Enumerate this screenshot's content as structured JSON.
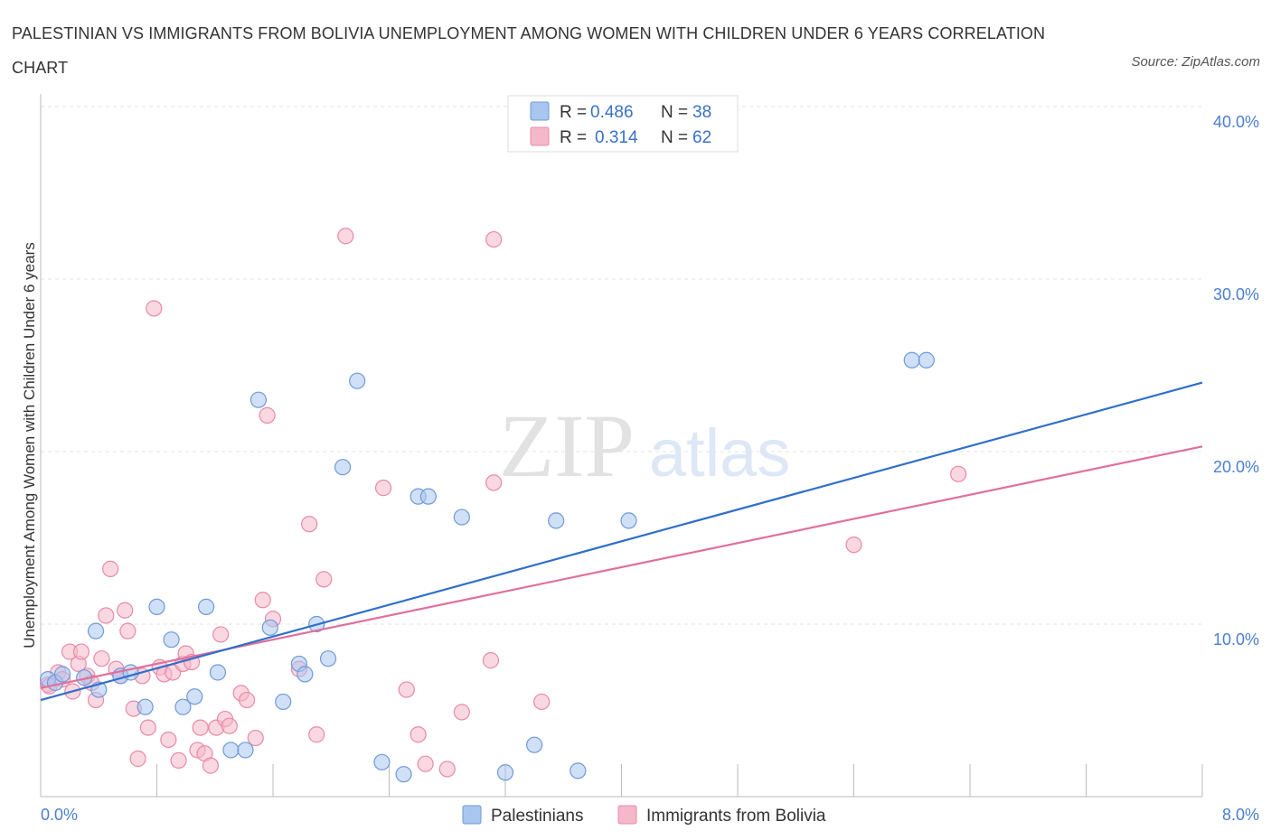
{
  "title": "PALESTINIAN VS IMMIGRANTS FROM BOLIVIA UNEMPLOYMENT AMONG WOMEN WITH CHILDREN UNDER 6 YEARS CORRELATION CHART",
  "source": "Source: ZipAtlas.com",
  "watermark": {
    "zip": "ZIP",
    "atlas": "atlas"
  },
  "legend_top": [
    {
      "r_label": "R = ",
      "r_value": "0.486",
      "n_label": "N = ",
      "n_value": "38",
      "color": "#a9c6f0"
    },
    {
      "r_label": "R = ",
      "r_value": "0.314",
      "n_label": "N = ",
      "n_value": "62",
      "color": "#f5b8cb"
    }
  ],
  "legend_bottom": [
    "Palestinians",
    "Immigrants from Bolivia"
  ],
  "colors": {
    "blue_fill": "#a9c6f0",
    "blue_stroke": "#6f9ad8",
    "blue_line": "#2f6fcb",
    "pink_fill": "#f5b8cb",
    "pink_stroke": "#e88aa8",
    "pink_line": "#e0709a",
    "tick": "#4a7fd0"
  },
  "chart_data": {
    "type": "scatter",
    "title": "PALESTINIAN VS IMMIGRANTS FROM BOLIVIA UNEMPLOYMENT AMONG WOMEN WITH CHILDREN UNDER 6 YEARS CORRELATION CHART",
    "xlabel": "",
    "ylabel": "Unemployment Among Women with Children Under 6 years",
    "xlim": [
      0,
      8
    ],
    "ylim": [
      0,
      40
    ],
    "x_tick_labels": [
      "0.0%",
      "8.0%"
    ],
    "y_ticks": [
      10,
      20,
      30,
      40
    ],
    "y_tick_labels": [
      "10.0%",
      "20.0%",
      "30.0%",
      "40.0%"
    ],
    "grid": true,
    "legend_placement": "top-center",
    "series": [
      {
        "name": "Palestinians",
        "r": 0.486,
        "n": 38,
        "trend": [
          [
            0,
            5.6
          ],
          [
            8,
            24.0
          ]
        ],
        "points": [
          [
            0.05,
            6.8
          ],
          [
            0.1,
            6.6
          ],
          [
            0.15,
            7.1
          ],
          [
            0.3,
            6.9
          ],
          [
            0.4,
            6.2
          ],
          [
            0.38,
            9.6
          ],
          [
            0.55,
            7.0
          ],
          [
            0.62,
            7.2
          ],
          [
            0.72,
            5.2
          ],
          [
            0.8,
            11.0
          ],
          [
            0.9,
            9.1
          ],
          [
            0.98,
            5.2
          ],
          [
            1.06,
            5.8
          ],
          [
            1.14,
            11.0
          ],
          [
            1.22,
            7.2
          ],
          [
            1.31,
            2.7
          ],
          [
            1.41,
            2.7
          ],
          [
            1.5,
            23.0
          ],
          [
            1.58,
            9.8
          ],
          [
            1.67,
            5.5
          ],
          [
            1.78,
            7.7
          ],
          [
            1.82,
            7.1
          ],
          [
            1.9,
            10.0
          ],
          [
            1.98,
            8.0
          ],
          [
            2.08,
            19.1
          ],
          [
            2.18,
            24.1
          ],
          [
            2.35,
            2.0
          ],
          [
            2.5,
            1.3
          ],
          [
            2.6,
            17.4
          ],
          [
            2.67,
            17.4
          ],
          [
            2.9,
            16.2
          ],
          [
            3.2,
            1.4
          ],
          [
            3.4,
            3.0
          ],
          [
            3.55,
            16.0
          ],
          [
            3.7,
            1.5
          ],
          [
            4.05,
            16.0
          ],
          [
            6.0,
            25.3
          ],
          [
            6.1,
            25.3
          ]
        ]
      },
      {
        "name": "Immigrants from Bolivia",
        "r": 0.314,
        "n": 62,
        "trend": [
          [
            0,
            6.3
          ],
          [
            8,
            20.3
          ]
        ],
        "points": [
          [
            0.05,
            6.5
          ],
          [
            0.12,
            7.2
          ],
          [
            0.15,
            6.8
          ],
          [
            0.2,
            8.4
          ],
          [
            0.22,
            6.1
          ],
          [
            0.26,
            7.7
          ],
          [
            0.28,
            8.4
          ],
          [
            0.32,
            7.0
          ],
          [
            0.35,
            6.6
          ],
          [
            0.38,
            5.6
          ],
          [
            0.42,
            8.0
          ],
          [
            0.45,
            10.5
          ],
          [
            0.48,
            13.2
          ],
          [
            0.52,
            7.4
          ],
          [
            0.55,
            7.0
          ],
          [
            0.58,
            10.8
          ],
          [
            0.6,
            9.6
          ],
          [
            0.64,
            5.1
          ],
          [
            0.67,
            2.2
          ],
          [
            0.7,
            7.0
          ],
          [
            0.74,
            4.0
          ],
          [
            0.78,
            28.3
          ],
          [
            0.82,
            7.5
          ],
          [
            0.85,
            7.1
          ],
          [
            0.88,
            3.3
          ],
          [
            0.91,
            7.2
          ],
          [
            0.95,
            2.1
          ],
          [
            0.98,
            7.7
          ],
          [
            1.0,
            8.3
          ],
          [
            1.04,
            7.8
          ],
          [
            1.08,
            2.7
          ],
          [
            1.1,
            4.0
          ],
          [
            1.13,
            2.5
          ],
          [
            1.17,
            1.8
          ],
          [
            1.21,
            4.0
          ],
          [
            1.24,
            9.4
          ],
          [
            1.27,
            4.5
          ],
          [
            1.3,
            4.1
          ],
          [
            1.38,
            6.0
          ],
          [
            1.42,
            5.6
          ],
          [
            1.48,
            3.4
          ],
          [
            1.53,
            11.4
          ],
          [
            1.56,
            22.1
          ],
          [
            1.6,
            10.3
          ],
          [
            1.78,
            7.4
          ],
          [
            1.85,
            15.8
          ],
          [
            1.9,
            3.6
          ],
          [
            1.95,
            12.6
          ],
          [
            2.1,
            32.5
          ],
          [
            2.36,
            17.9
          ],
          [
            2.52,
            6.2
          ],
          [
            2.6,
            3.6
          ],
          [
            2.65,
            1.9
          ],
          [
            2.8,
            1.6
          ],
          [
            2.9,
            4.9
          ],
          [
            3.1,
            7.9
          ],
          [
            3.12,
            18.2
          ],
          [
            3.12,
            32.3
          ],
          [
            3.45,
            5.5
          ],
          [
            5.6,
            14.6
          ],
          [
            6.32,
            18.7
          ],
          [
            0.06,
            6.4
          ]
        ]
      }
    ]
  }
}
